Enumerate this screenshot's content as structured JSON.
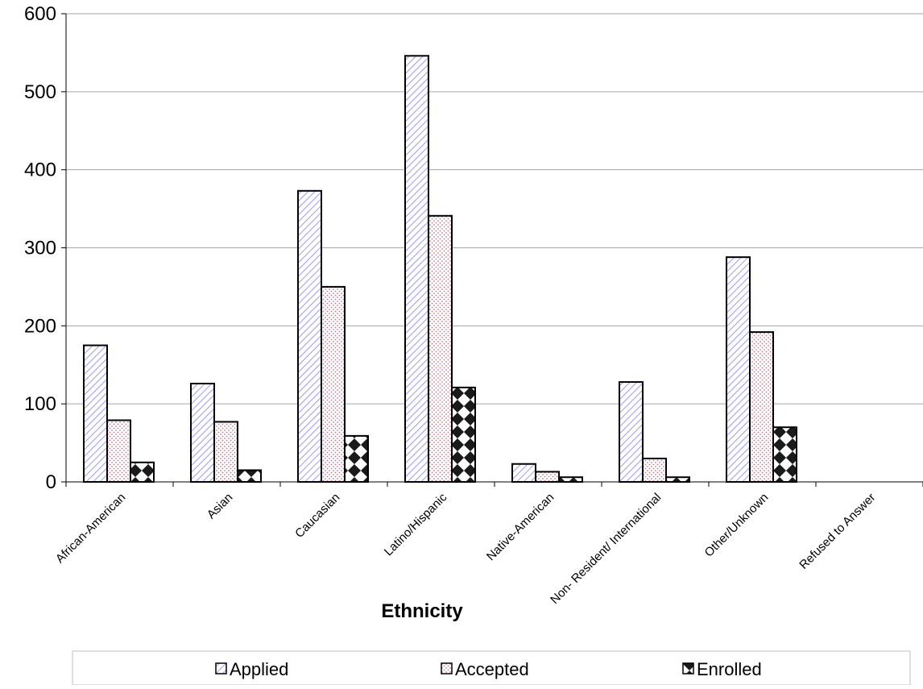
{
  "chart_data": {
    "type": "bar",
    "title": "",
    "xlabel": "Ethnicity",
    "ylabel": "",
    "ylim": [
      0,
      600
    ],
    "yticks": [
      0,
      100,
      200,
      300,
      400,
      500,
      600
    ],
    "grid": true,
    "legend_position": "bottom",
    "categories": [
      "African-American",
      "Asian",
      "Caucasian",
      "Latino/Hispanic",
      "Native-American",
      "Non- Resident/ International",
      "Other/Unknown",
      "Refused to Answer"
    ],
    "series": [
      {
        "name": "Applied",
        "values": [
          175,
          126,
          373,
          546,
          23,
          128,
          288,
          0
        ],
        "color": "#9999ff"
      },
      {
        "name": "Accepted",
        "values": [
          79,
          77,
          250,
          341,
          13,
          30,
          192,
          0
        ],
        "color": "#cc8899"
      },
      {
        "name": "Enrolled",
        "values": [
          25,
          15,
          59,
          121,
          6,
          6,
          70,
          0
        ],
        "color": "#222222"
      }
    ]
  }
}
